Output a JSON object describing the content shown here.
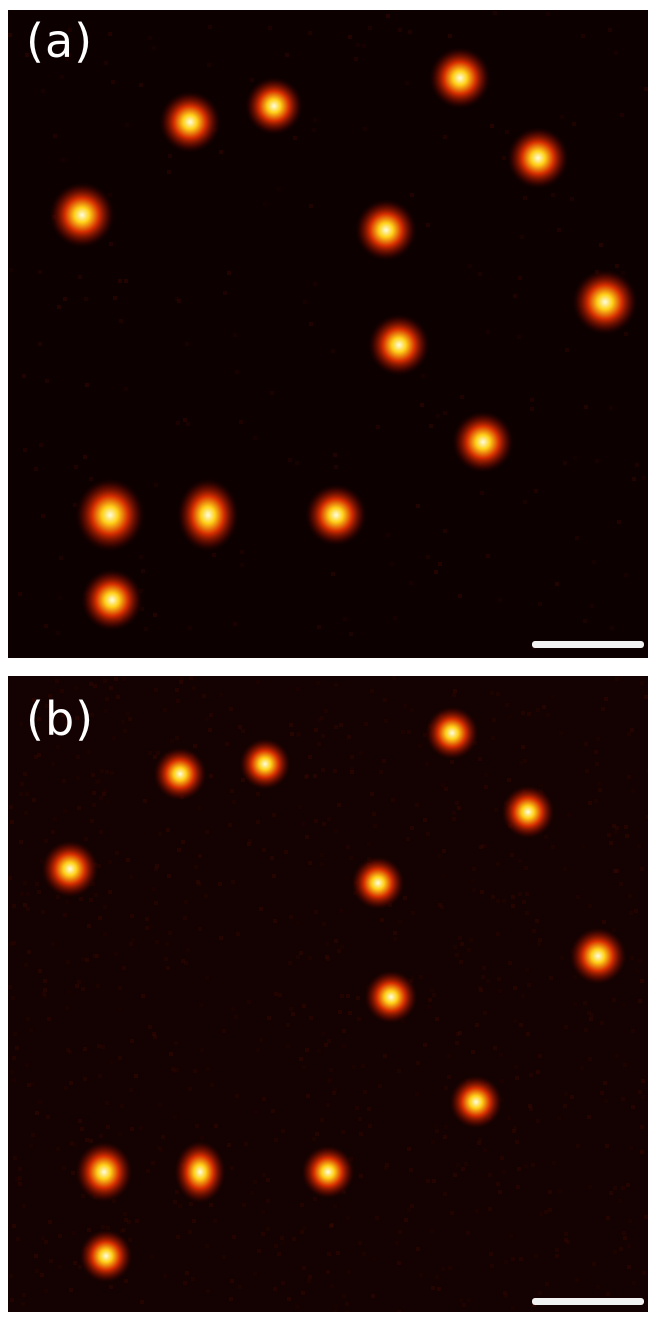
{
  "panels": [
    {
      "id": "a",
      "label": "(a)"
    },
    {
      "id": "b",
      "label": "(b)"
    }
  ],
  "colors": {
    "background_a": "#0d0000",
    "background_b": "#130201",
    "spot_core": "#fffde0",
    "spot_mid": "#ffd21a",
    "spot_edge": "#e03000",
    "label": "#ffffff",
    "scalebar": "#f2f2f2"
  }
}
